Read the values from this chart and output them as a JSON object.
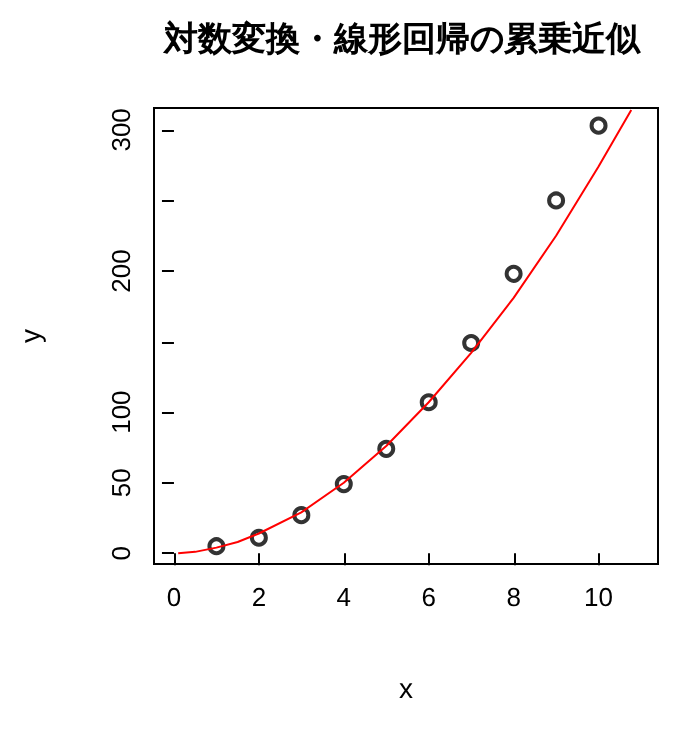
{
  "chart_data": {
    "type": "scatter",
    "title": "対数変換・線形回帰の累乗近似",
    "xlabel": "x",
    "ylabel": "y",
    "xlim": [
      -0.47,
      11.4
    ],
    "ylim": [
      -7.6,
      315.5
    ],
    "xticks": [
      0,
      2,
      4,
      6,
      8,
      10
    ],
    "yticks": [
      0,
      50,
      100,
      {
        "value": 150,
        "label": null
      },
      200,
      {
        "value": 250,
        "label": null
      },
      300
    ],
    "grid": false,
    "series": [
      {
        "marker": "circle",
        "color": "#000000",
        "x": [
          1,
          2,
          3,
          4,
          5,
          6,
          7,
          8,
          9,
          10
        ],
        "values": [
          5,
          11,
          27,
          49,
          74,
          107,
          149,
          198,
          250,
          303
        ]
      },
      {
        "type": "line",
        "marker": "none",
        "line_style": "solid",
        "color": "#ff0000",
        "x": [
          0.1,
          0.5,
          1,
          1.5,
          2,
          3,
          4,
          5,
          6,
          7,
          8,
          9,
          10,
          10.77
        ],
        "values": [
          0,
          1,
          4,
          8,
          14,
          29,
          50,
          76,
          107,
          142,
          181,
          225,
          274,
          314
        ]
      }
    ]
  }
}
